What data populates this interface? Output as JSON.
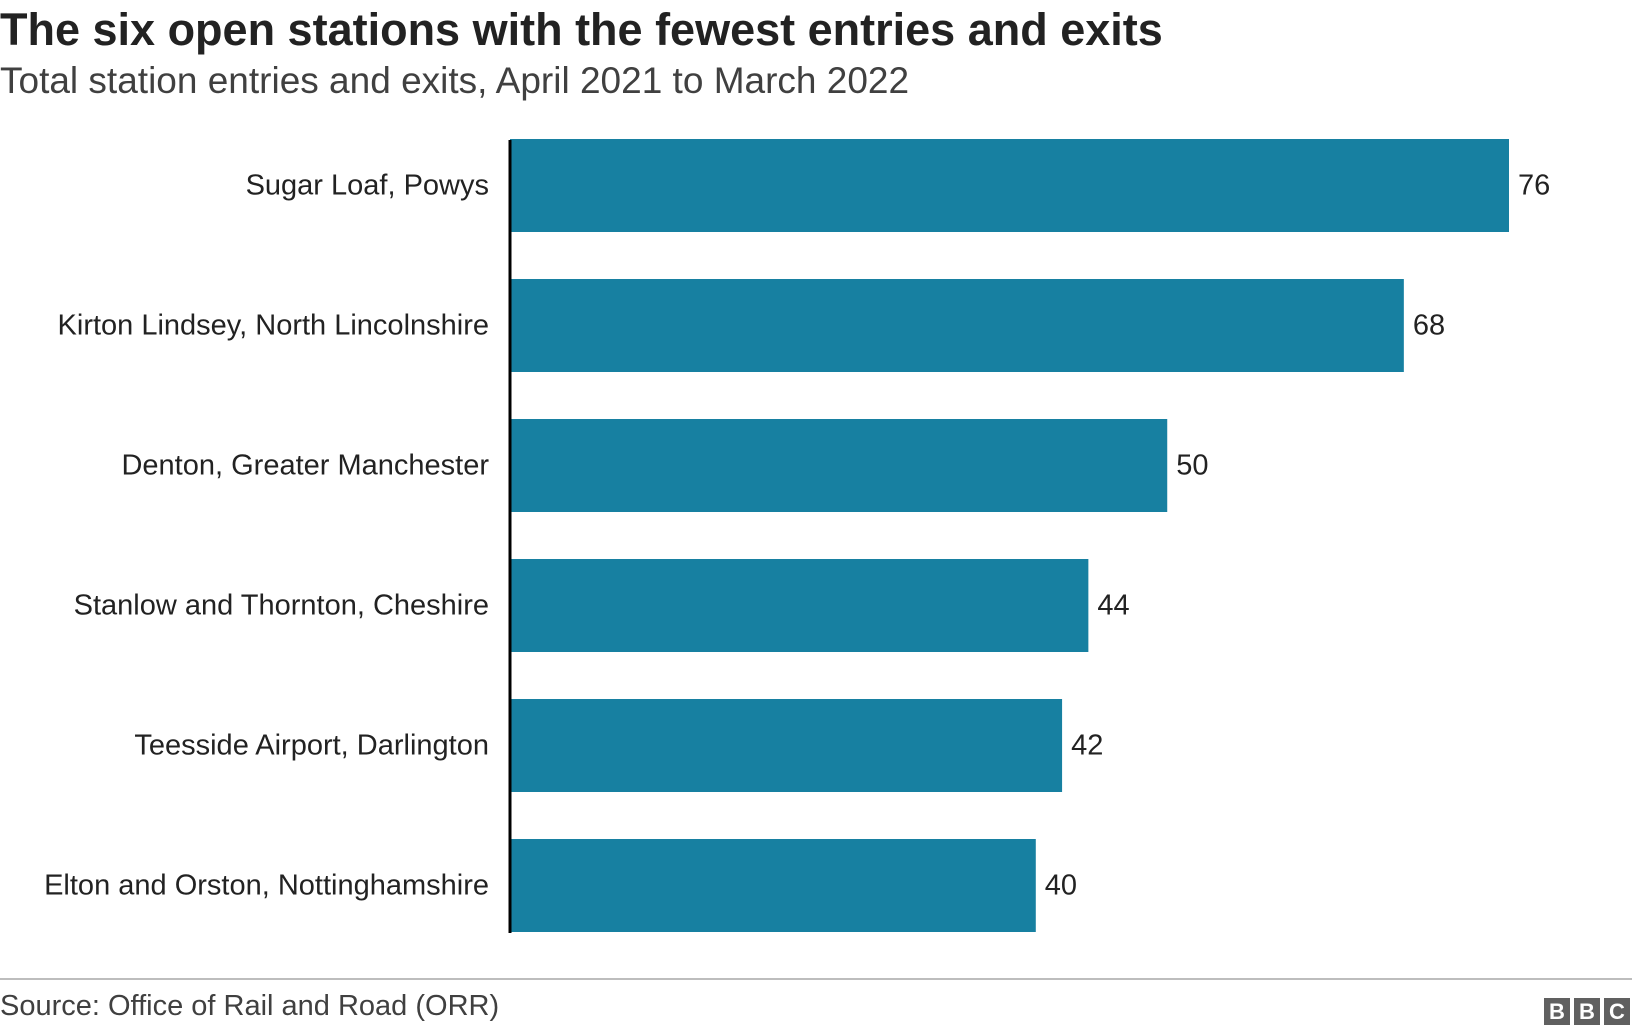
{
  "header": {
    "title": "The six open stations with the fewest entries and exits",
    "subtitle": "Total station entries and exits, April 2021 to March 2022"
  },
  "footer": {
    "source": "Source: Office of Rail and Road (ORR)",
    "logo_letters": [
      "B",
      "B",
      "C"
    ]
  },
  "colors": {
    "bar": "#1780a1",
    "axis": "#000000"
  },
  "chart_data": {
    "type": "bar",
    "orientation": "horizontal",
    "title": "The six open stations with the fewest entries and exits",
    "subtitle": "Total station entries and exits, April 2021 to March 2022",
    "categories": [
      "Sugar Loaf, Powys",
      "Kirton Lindsey, North Lincolnshire",
      "Denton, Greater Manchester",
      "Stanlow and Thornton, Cheshire",
      "Teesside Airport, Darlington",
      "Elton and Orston, Nottinghamshire"
    ],
    "values": [
      76,
      68,
      50,
      44,
      42,
      40
    ],
    "data_labels": [
      "76",
      "68",
      "50",
      "44",
      "42",
      "40"
    ],
    "xlim": [
      0,
      76
    ],
    "grid": false,
    "legend": "none"
  }
}
